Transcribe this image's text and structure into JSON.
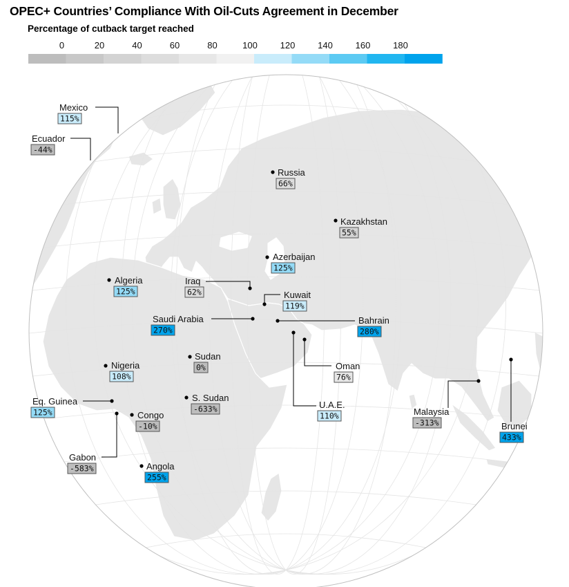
{
  "title": "OPEC+ Countries’ Compliance With Oil-Cuts Agreement in December",
  "subtitle": "Percentage of cutback target reached",
  "legend": {
    "ticks": [
      "0",
      "20",
      "40",
      "60",
      "80",
      "100",
      "120",
      "140",
      "160",
      "180"
    ],
    "colors": [
      "#bdbdbd",
      "#c8c8c8",
      "#d3d3d3",
      "#dddddd",
      "#e7e7e7",
      "#f1f1f1",
      "#c9ecfb",
      "#94dbf7",
      "#5ccaf3",
      "#21b6f0",
      "#00a3ec"
    ]
  },
  "colors": {
    "land": "#e6e6e6",
    "land_edge": "#ffffff",
    "ocean": "#ffffff",
    "grid": "#e4e4e4",
    "globe_edge": "#bfbfbf",
    "leader": "#000000"
  },
  "countries": [
    {
      "name": "Mexico",
      "value": "115%",
      "color": "#c9ecfb"
    },
    {
      "name": "Ecuador",
      "value": "-44%",
      "color": "#bdbdbd"
    },
    {
      "name": "Russia",
      "value": "66%",
      "color": "#dddddd"
    },
    {
      "name": "Kazakhstan",
      "value": "55%",
      "color": "#d3d3d3"
    },
    {
      "name": "Azerbaijan",
      "value": "125%",
      "color": "#94dbf7"
    },
    {
      "name": "Algeria",
      "value": "125%",
      "color": "#94dbf7"
    },
    {
      "name": "Iraq",
      "value": "62%",
      "color": "#dddddd"
    },
    {
      "name": "Kuwait",
      "value": "119%",
      "color": "#c9ecfb"
    },
    {
      "name": "Saudi Arabia",
      "value": "270%",
      "color": "#00a3ec"
    },
    {
      "name": "Bahrain",
      "value": "280%",
      "color": "#00a3ec"
    },
    {
      "name": "Sudan",
      "value": "0%",
      "color": "#bdbdbd"
    },
    {
      "name": "Nigeria",
      "value": "108%",
      "color": "#c9ecfb"
    },
    {
      "name": "Oman",
      "value": "76%",
      "color": "#e7e7e7"
    },
    {
      "name": "S. Sudan",
      "value": "-633%",
      "color": "#bdbdbd"
    },
    {
      "name": "Eq. Guinea",
      "value": "125%",
      "color": "#94dbf7"
    },
    {
      "name": "Congo",
      "value": "-10%",
      "color": "#bdbdbd"
    },
    {
      "name": "U.A.E.",
      "value": "110%",
      "color": "#c9ecfb"
    },
    {
      "name": "Malaysia",
      "value": "-313%",
      "color": "#bdbdbd"
    },
    {
      "name": "Brunei",
      "value": "433%",
      "color": "#00a3ec"
    },
    {
      "name": "Gabon",
      "value": "-583%",
      "color": "#bdbdbd"
    },
    {
      "name": "Angola",
      "value": "255%",
      "color": "#00a3ec"
    }
  ]
}
